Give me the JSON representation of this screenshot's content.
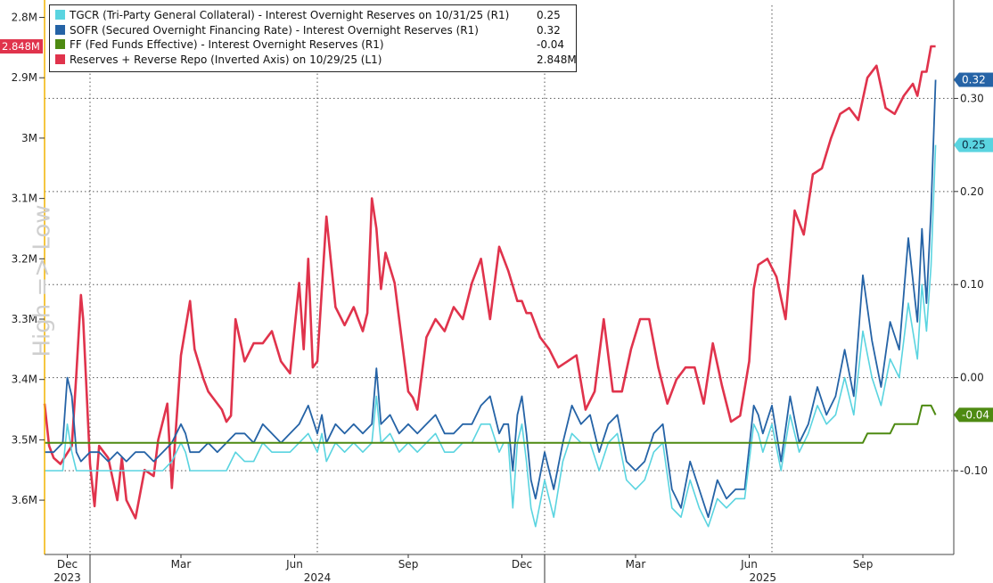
{
  "watermark": "High => Low",
  "legend": [
    {
      "label": "TGCR (Tri-Party General Collateral) - Interest Overnight Reserves on 10/31/25 (R1)",
      "value": "0.25",
      "color": "#5ad4e0"
    },
    {
      "label": "SOFR (Secured Overnight Financing Rate) - Interest Overnight Reserves (R1)",
      "value": "0.32",
      "color": "#2563a6"
    },
    {
      "label": "FF (Fed Funds Effective) - Interest Overnight Reserves (R1)",
      "value": "-0.04",
      "color": "#4e8a12"
    },
    {
      "label": "Reserves + Reverse Repo (Inverted Axis) on 10/29/25 (L1)",
      "value": "2.848M",
      "color": "#e0334c"
    }
  ],
  "chart_data": {
    "type": "line",
    "left_axis": {
      "ticks": [
        "2.8M",
        "2.9M",
        "3M",
        "3.1M",
        "3.2M",
        "3.3M",
        "3.4M",
        "3.5M",
        "3.6M"
      ],
      "tick_values": [
        2.8,
        2.9,
        3.0,
        3.1,
        3.2,
        3.3,
        3.4,
        3.5,
        3.6
      ],
      "range": [
        2.78,
        3.69
      ],
      "inverted": true,
      "last_label": "2.848M",
      "last_color": "#e0334c"
    },
    "right_axis": {
      "ticks": [
        "0.30",
        "0.20",
        "0.10",
        "0.00",
        "-0.10"
      ],
      "tick_values": [
        0.3,
        0.2,
        0.1,
        0.0,
        -0.1
      ],
      "range": [
        -0.19,
        0.4
      ],
      "last_labels": [
        {
          "text": "0.32",
          "value": 0.32,
          "color": "#2563a6",
          "text_color": "#ffffff"
        },
        {
          "text": "0.25",
          "value": 0.25,
          "color": "#5ad4e0",
          "text_color": "#0b2a40"
        },
        {
          "text": "-0.04",
          "value": -0.04,
          "color": "#4e8a12",
          "text_color": "#ffffff"
        }
      ]
    },
    "x_axis": {
      "months": [
        "Dec",
        "Mar",
        "Jun",
        "Sep",
        "Dec",
        "Mar",
        "Jun",
        "Sep"
      ],
      "month_positions": [
        2023.95,
        2024.2,
        2024.45,
        2024.7,
        2024.95,
        2025.2,
        2025.45,
        2025.7
      ],
      "years": [
        "2023",
        "2024",
        "2025"
      ],
      "year_positions": [
        2023.95,
        2024.5,
        2025.48
      ],
      "dividers": [
        2024.0,
        2025.0
      ],
      "grid_positions": [
        2024.0,
        2024.5,
        2025.0,
        2025.5
      ],
      "range": [
        2023.9,
        2025.9
      ]
    },
    "grid": true,
    "legend_position": "top-left",
    "series": [
      {
        "name": "Reserves + Reverse Repo (Inverted Axis)",
        "axis": "left",
        "color": "#e0334c",
        "width": 2.6,
        "x": [
          2023.9,
          2023.91,
          2023.92,
          2023.935,
          2023.96,
          2023.97,
          2023.98,
          2023.985,
          2024.0,
          2024.01,
          2024.02,
          2024.04,
          2024.06,
          2024.07,
          2024.08,
          2024.1,
          2024.12,
          2024.14,
          2024.15,
          2024.17,
          2024.18,
          2024.2,
          2024.22,
          2024.23,
          2024.25,
          2024.26,
          2024.27,
          2024.29,
          2024.3,
          2024.31,
          2024.32,
          2024.34,
          2024.36,
          2024.38,
          2024.4,
          2024.42,
          2024.44,
          2024.46,
          2024.47,
          2024.48,
          2024.49,
          2024.5,
          2024.52,
          2024.54,
          2024.56,
          2024.58,
          2024.6,
          2024.61,
          2024.62,
          2024.63,
          2024.64,
          2024.65,
          2024.67,
          2024.68,
          2024.7,
          2024.71,
          2024.72,
          2024.74,
          2024.76,
          2024.78,
          2024.8,
          2024.82,
          2024.84,
          2024.86,
          2024.88,
          2024.9,
          2024.92,
          2024.94,
          2024.95,
          2024.96,
          2024.97,
          2024.99,
          2025.01,
          2025.03,
          2025.05,
          2025.07,
          2025.09,
          2025.11,
          2025.13,
          2025.15,
          2025.17,
          2025.19,
          2025.21,
          2025.23,
          2025.25,
          2025.27,
          2025.29,
          2025.31,
          2025.33,
          2025.35,
          2025.37,
          2025.39,
          2025.41,
          2025.43,
          2025.45,
          2025.46,
          2025.47,
          2025.49,
          2025.51,
          2025.53,
          2025.55,
          2025.57,
          2025.59,
          2025.61,
          2025.63,
          2025.65,
          2025.67,
          2025.69,
          2025.71,
          2025.73,
          2025.75,
          2025.77,
          2025.79,
          2025.81,
          2025.82,
          2025.83,
          2025.84,
          2025.85,
          2025.86
        ],
        "y": [
          3.44,
          3.51,
          3.53,
          3.54,
          3.51,
          3.39,
          3.26,
          3.3,
          3.54,
          3.61,
          3.51,
          3.53,
          3.6,
          3.53,
          3.6,
          3.63,
          3.55,
          3.56,
          3.5,
          3.44,
          3.58,
          3.36,
          3.27,
          3.35,
          3.4,
          3.42,
          3.43,
          3.45,
          3.47,
          3.46,
          3.3,
          3.37,
          3.34,
          3.34,
          3.32,
          3.37,
          3.39,
          3.24,
          3.35,
          3.2,
          3.38,
          3.37,
          3.13,
          3.28,
          3.31,
          3.28,
          3.32,
          3.29,
          3.1,
          3.15,
          3.25,
          3.19,
          3.24,
          3.3,
          3.42,
          3.43,
          3.45,
          3.33,
          3.3,
          3.32,
          3.28,
          3.3,
          3.24,
          3.2,
          3.3,
          3.18,
          3.22,
          3.27,
          3.27,
          3.29,
          3.29,
          3.33,
          3.35,
          3.38,
          3.37,
          3.36,
          3.45,
          3.42,
          3.3,
          3.42,
          3.42,
          3.35,
          3.3,
          3.3,
          3.38,
          3.44,
          3.4,
          3.38,
          3.38,
          3.44,
          3.34,
          3.41,
          3.47,
          3.46,
          3.37,
          3.25,
          3.21,
          3.2,
          3.23,
          3.3,
          3.12,
          3.16,
          3.06,
          3.05,
          3.0,
          2.96,
          2.95,
          2.97,
          2.9,
          2.88,
          2.95,
          2.96,
          2.93,
          2.91,
          2.93,
          2.89,
          2.89,
          2.848,
          2.848
        ]
      },
      {
        "name": "SOFR",
        "axis": "right",
        "color": "#2563a6",
        "width": 1.8,
        "x": [
          2023.9,
          2023.92,
          2023.94,
          2023.95,
          2023.96,
          2023.97,
          2023.98,
          2024.0,
          2024.02,
          2024.04,
          2024.06,
          2024.08,
          2024.1,
          2024.12,
          2024.14,
          2024.16,
          2024.18,
          2024.2,
          2024.21,
          2024.22,
          2024.24,
          2024.26,
          2024.28,
          2024.3,
          2024.32,
          2024.34,
          2024.36,
          2024.38,
          2024.4,
          2024.42,
          2024.44,
          2024.46,
          2024.48,
          2024.5,
          2024.51,
          2024.52,
          2024.54,
          2024.56,
          2024.58,
          2024.6,
          2024.62,
          2024.63,
          2024.64,
          2024.66,
          2024.68,
          2024.7,
          2024.72,
          2024.74,
          2024.76,
          2024.78,
          2024.8,
          2024.82,
          2024.84,
          2024.86,
          2024.88,
          2024.9,
          2024.91,
          2024.92,
          2024.93,
          2024.94,
          2024.95,
          2024.96,
          2024.97,
          2024.98,
          2025.0,
          2025.02,
          2025.04,
          2025.06,
          2025.08,
          2025.1,
          2025.12,
          2025.14,
          2025.16,
          2025.18,
          2025.2,
          2025.22,
          2025.24,
          2025.26,
          2025.28,
          2025.3,
          2025.32,
          2025.34,
          2025.36,
          2025.38,
          2025.4,
          2025.42,
          2025.44,
          2025.46,
          2025.47,
          2025.48,
          2025.5,
          2025.52,
          2025.54,
          2025.56,
          2025.58,
          2025.6,
          2025.62,
          2025.64,
          2025.66,
          2025.68,
          2025.7,
          2025.72,
          2025.74,
          2025.76,
          2025.78,
          2025.8,
          2025.82,
          2025.83,
          2025.84,
          2025.85,
          2025.86
        ],
        "y": [
          -0.08,
          -0.08,
          -0.07,
          0.0,
          -0.02,
          -0.08,
          -0.09,
          -0.08,
          -0.08,
          -0.09,
          -0.08,
          -0.09,
          -0.08,
          -0.08,
          -0.09,
          -0.08,
          -0.07,
          -0.05,
          -0.06,
          -0.08,
          -0.08,
          -0.07,
          -0.08,
          -0.07,
          -0.06,
          -0.06,
          -0.07,
          -0.05,
          -0.06,
          -0.07,
          -0.06,
          -0.05,
          -0.03,
          -0.06,
          -0.04,
          -0.07,
          -0.05,
          -0.06,
          -0.05,
          -0.06,
          -0.05,
          0.01,
          -0.05,
          -0.04,
          -0.06,
          -0.05,
          -0.06,
          -0.05,
          -0.04,
          -0.06,
          -0.06,
          -0.05,
          -0.05,
          -0.03,
          -0.02,
          -0.06,
          -0.05,
          -0.05,
          -0.1,
          -0.04,
          -0.02,
          -0.06,
          -0.11,
          -0.13,
          -0.08,
          -0.12,
          -0.07,
          -0.03,
          -0.05,
          -0.04,
          -0.08,
          -0.05,
          -0.04,
          -0.09,
          -0.1,
          -0.09,
          -0.06,
          -0.05,
          -0.12,
          -0.14,
          -0.09,
          -0.12,
          -0.15,
          -0.11,
          -0.13,
          -0.12,
          -0.12,
          -0.03,
          -0.04,
          -0.06,
          -0.03,
          -0.09,
          -0.02,
          -0.07,
          -0.05,
          -0.01,
          -0.04,
          -0.02,
          0.03,
          -0.02,
          0.11,
          0.04,
          -0.01,
          0.06,
          0.03,
          0.15,
          0.06,
          0.16,
          0.08,
          0.18,
          0.32
        ]
      },
      {
        "name": "TGCR",
        "axis": "right",
        "color": "#5ad4e0",
        "width": 1.6,
        "x": [
          2023.9,
          2023.92,
          2023.94,
          2023.95,
          2023.96,
          2023.97,
          2023.98,
          2024.0,
          2024.02,
          2024.04,
          2024.06,
          2024.08,
          2024.1,
          2024.12,
          2024.14,
          2024.16,
          2024.18,
          2024.2,
          2024.21,
          2024.22,
          2024.24,
          2024.26,
          2024.28,
          2024.3,
          2024.32,
          2024.34,
          2024.36,
          2024.38,
          2024.4,
          2024.42,
          2024.44,
          2024.46,
          2024.48,
          2024.5,
          2024.51,
          2024.52,
          2024.54,
          2024.56,
          2024.58,
          2024.6,
          2024.62,
          2024.63,
          2024.64,
          2024.66,
          2024.68,
          2024.7,
          2024.72,
          2024.74,
          2024.76,
          2024.78,
          2024.8,
          2024.82,
          2024.84,
          2024.86,
          2024.88,
          2024.9,
          2024.91,
          2024.92,
          2024.93,
          2024.94,
          2024.95,
          2024.96,
          2024.97,
          2024.98,
          2025.0,
          2025.02,
          2025.04,
          2025.06,
          2025.08,
          2025.1,
          2025.12,
          2025.14,
          2025.16,
          2025.18,
          2025.2,
          2025.22,
          2025.24,
          2025.26,
          2025.28,
          2025.3,
          2025.32,
          2025.34,
          2025.36,
          2025.38,
          2025.4,
          2025.42,
          2025.44,
          2025.46,
          2025.47,
          2025.48,
          2025.5,
          2025.52,
          2025.54,
          2025.56,
          2025.58,
          2025.6,
          2025.62,
          2025.64,
          2025.66,
          2025.68,
          2025.7,
          2025.72,
          2025.74,
          2025.76,
          2025.78,
          2025.8,
          2025.82,
          2025.83,
          2025.84,
          2025.85,
          2025.86
        ],
        "y": [
          -0.1,
          -0.1,
          -0.1,
          -0.05,
          -0.08,
          -0.1,
          -0.1,
          -0.1,
          -0.1,
          -0.1,
          -0.1,
          -0.1,
          -0.1,
          -0.1,
          -0.1,
          -0.1,
          -0.09,
          -0.07,
          -0.08,
          -0.1,
          -0.1,
          -0.1,
          -0.1,
          -0.1,
          -0.08,
          -0.09,
          -0.09,
          -0.07,
          -0.08,
          -0.08,
          -0.08,
          -0.07,
          -0.06,
          -0.08,
          -0.06,
          -0.09,
          -0.07,
          -0.08,
          -0.07,
          -0.08,
          -0.07,
          -0.02,
          -0.07,
          -0.06,
          -0.08,
          -0.07,
          -0.08,
          -0.07,
          -0.06,
          -0.08,
          -0.08,
          -0.07,
          -0.07,
          -0.05,
          -0.05,
          -0.08,
          -0.07,
          -0.07,
          -0.14,
          -0.07,
          -0.05,
          -0.09,
          -0.14,
          -0.16,
          -0.11,
          -0.15,
          -0.09,
          -0.06,
          -0.07,
          -0.07,
          -0.1,
          -0.07,
          -0.06,
          -0.11,
          -0.12,
          -0.11,
          -0.08,
          -0.07,
          -0.14,
          -0.15,
          -0.11,
          -0.14,
          -0.16,
          -0.13,
          -0.14,
          -0.13,
          -0.13,
          -0.05,
          -0.06,
          -0.08,
          -0.05,
          -0.1,
          -0.04,
          -0.08,
          -0.06,
          -0.03,
          -0.05,
          -0.04,
          0.0,
          -0.04,
          0.05,
          0.0,
          -0.03,
          0.02,
          0.0,
          0.08,
          0.02,
          0.1,
          0.05,
          0.12,
          0.25
        ]
      },
      {
        "name": "FF",
        "axis": "right",
        "color": "#4e8a12",
        "width": 2.0,
        "x": [
          2023.9,
          2025.7,
          2025.71,
          2025.76,
          2025.77,
          2025.82,
          2025.83,
          2025.85,
          2025.86
        ],
        "y": [
          -0.07,
          -0.07,
          -0.06,
          -0.06,
          -0.05,
          -0.05,
          -0.03,
          -0.03,
          -0.04
        ]
      }
    ]
  }
}
